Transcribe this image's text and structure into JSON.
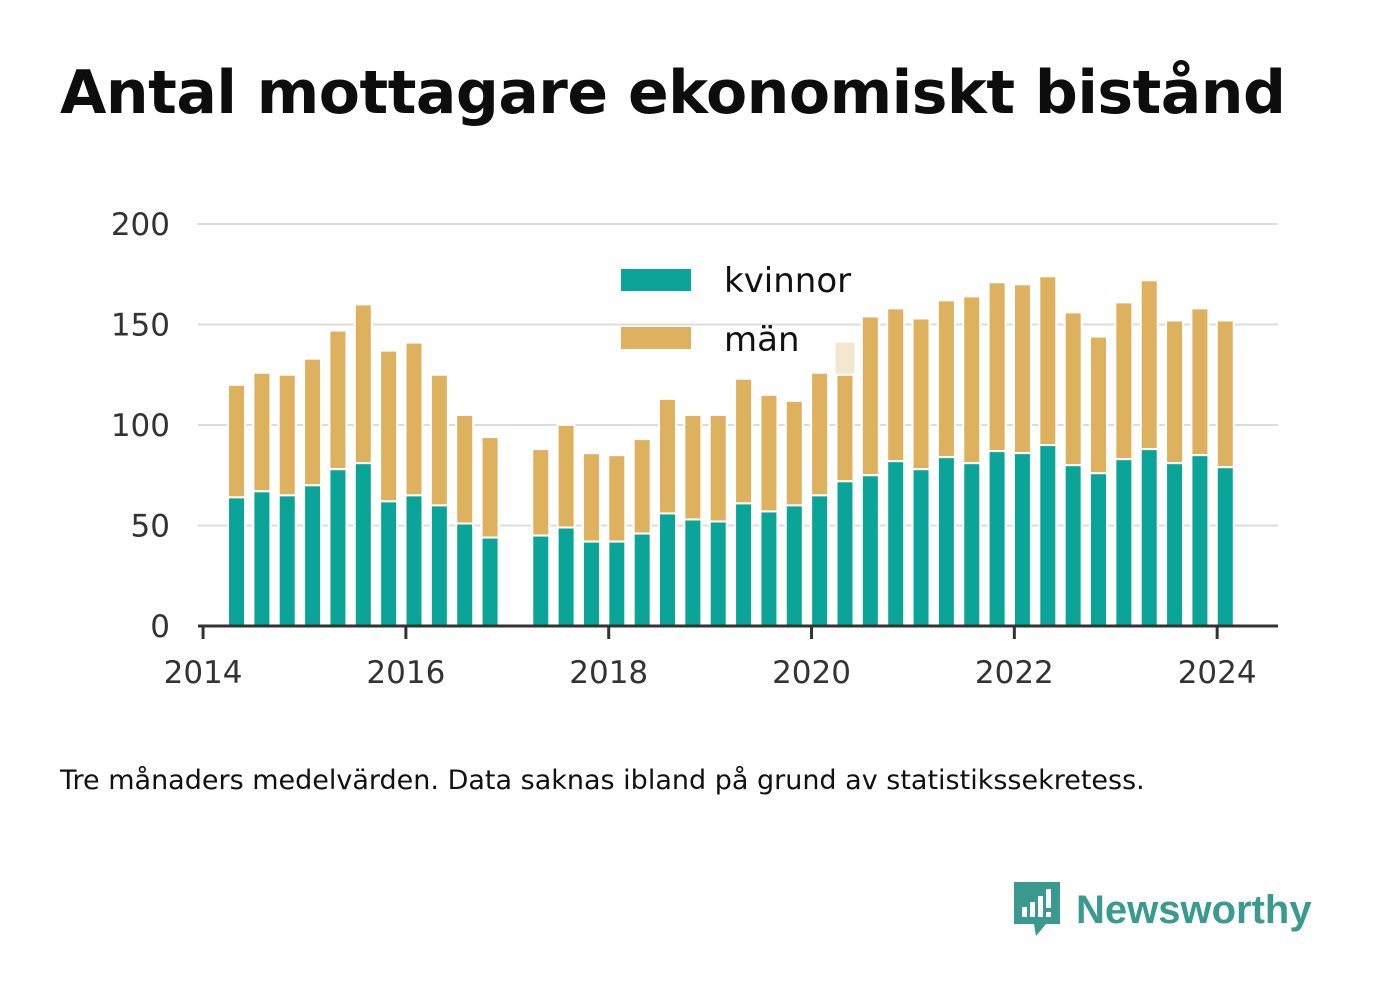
{
  "title": "Antal mottagare ekonomiskt bistånd",
  "caption": "Tre månaders medelvärden. Data saknas ibland på grund av statistikssekretess.",
  "brand": {
    "name": "Newsworthy",
    "icon": "newsworthy-logo-icon",
    "color": "#3a9a8f"
  },
  "chart_data": {
    "type": "bar",
    "stacked": true,
    "title": "Antal mottagare ekonomiskt bistånd",
    "xlabel": "",
    "ylabel": "",
    "ylim": [
      0,
      200
    ],
    "xlim": [
      2013.95,
      2024.6
    ],
    "yticks": [
      0,
      50,
      100,
      150,
      200
    ],
    "xticks": [
      2014,
      2016,
      2018,
      2020,
      2022,
      2024
    ],
    "grid": true,
    "legend_position": "top-center",
    "x": [
      2014.33,
      2014.58,
      2014.83,
      2015.08,
      2015.33,
      2015.58,
      2015.83,
      2016.08,
      2016.33,
      2016.58,
      2016.83,
      2017.33,
      2017.58,
      2017.83,
      2018.08,
      2018.33,
      2018.58,
      2018.83,
      2019.08,
      2019.33,
      2019.58,
      2019.83,
      2020.08,
      2020.33,
      2020.58,
      2020.83,
      2021.08,
      2021.33,
      2021.58,
      2021.83,
      2022.08,
      2022.33,
      2022.58,
      2022.83,
      2023.08,
      2023.33,
      2023.58,
      2023.83,
      2024.08
    ],
    "series": [
      {
        "name": "kvinnor",
        "color": "#0aa598",
        "values": [
          64,
          67,
          65,
          70,
          78,
          81,
          62,
          65,
          60,
          51,
          44,
          45,
          49,
          42,
          42,
          46,
          56,
          53,
          52,
          61,
          57,
          60,
          65,
          72,
          75,
          82,
          78,
          84,
          81,
          87,
          86,
          90,
          80,
          76,
          83,
          88,
          81,
          85,
          79
        ]
      },
      {
        "name": "män",
        "color": "#ddb15d",
        "values": [
          56,
          59,
          60,
          63,
          69,
          79,
          75,
          76,
          65,
          54,
          50,
          43,
          51,
          44,
          43,
          47,
          57,
          52,
          53,
          62,
          58,
          52,
          61,
          53,
          79,
          76,
          75,
          78,
          83,
          84,
          84,
          84,
          76,
          68,
          78,
          84,
          71,
          73,
          73
        ]
      }
    ],
    "ghost_bars": [
      {
        "x": 2020.33,
        "total": 141,
        "color": "#f5e6cf"
      }
    ]
  }
}
